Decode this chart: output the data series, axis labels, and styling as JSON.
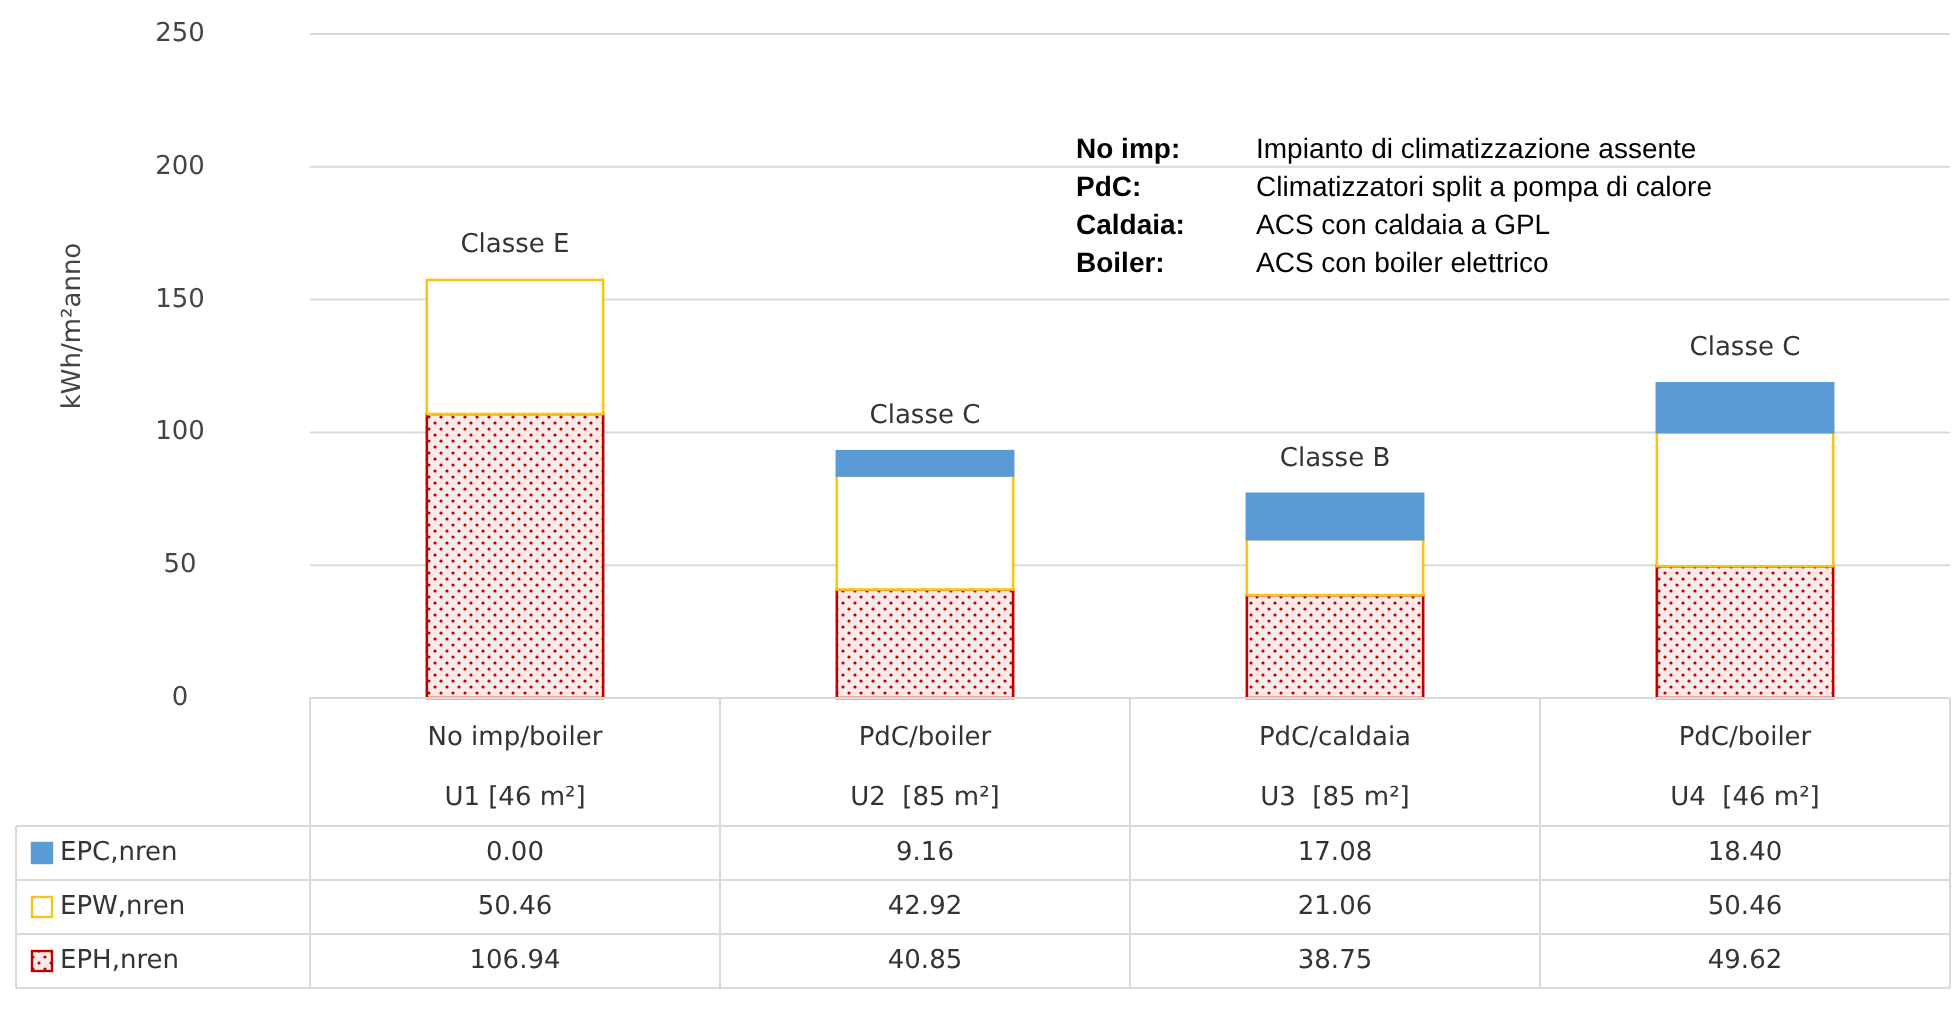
{
  "chart_data": {
    "type": "bar",
    "stacked": true,
    "ylabel": "kWh/m²anno",
    "ylim": [
      0,
      250
    ],
    "yticks": [
      0,
      50,
      100,
      150,
      200,
      250
    ],
    "grid": "y",
    "legend": "bottom left",
    "categories": [
      "No imp/boiler\nU1 [46 m²]",
      "PdC/boiler\nU2  [85 m²]",
      "PdC/caldaia\nU3  [85 m²]",
      "PdC/boiler\nU4  [46 m²]"
    ],
    "series": [
      {
        "name": "EPH,nren",
        "color": "#c00000",
        "values": [
          106.94,
          40.85,
          38.75,
          49.62
        ],
        "value_labels": [
          "106.94",
          "40.85",
          "38.75",
          "49.62"
        ]
      },
      {
        "name": "EPW,nren",
        "color": "#f5c518",
        "values": [
          50.46,
          42.92,
          21.06,
          50.46
        ],
        "value_labels": [
          "50.46",
          "42.92",
          "21.06",
          "50.46"
        ]
      },
      {
        "name": "EPC,nren",
        "color": "#5b9bd5",
        "values": [
          0,
          9.16,
          17.08,
          18.4
        ],
        "value_labels": [
          "0.00",
          "9.16",
          "17.08",
          "18.40"
        ]
      }
    ],
    "annotations": [
      "Classe E",
      "Classe C",
      "Classe B",
      "Classe C",
      "No imp: Impianto di climatizzazione assente",
      "PdC: Climatizzatori split a pompa di calore",
      "Caldaia: ACS con caldaia a GPL",
      "Boiler: ACS con boiler elettrico"
    ]
  }
}
